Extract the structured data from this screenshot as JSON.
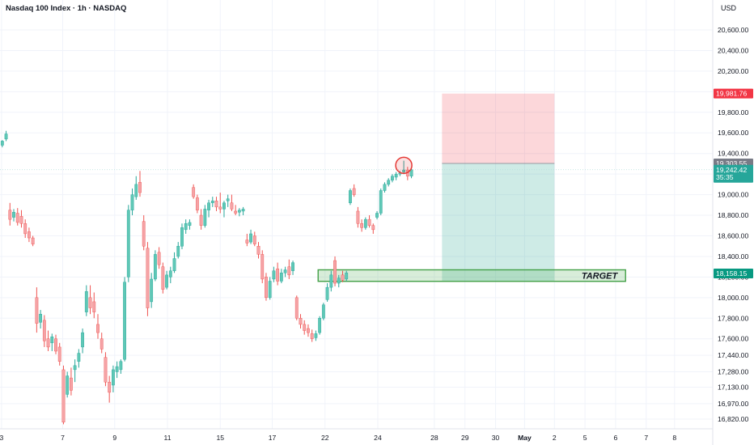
{
  "header": {
    "symbol": "Nasdaq 100 Index · 1h · NASDAQ",
    "currency": "USD"
  },
  "colors": {
    "up": "#26a69a",
    "down": "#ef5350",
    "up_body": "#5fc8b6",
    "down_body": "#f5a3a6",
    "grid": "#f0f3fa",
    "axis_text": "#131722",
    "stop_zone": "rgba(242,54,69,0.2)",
    "profit_zone": "rgba(8,153,129,0.2)",
    "target_zone": "rgba(76,175,80,0.22)",
    "target_border": "#43a047",
    "marker": "#e53935"
  },
  "chart_data": {
    "type": "candlestick",
    "title": "Nasdaq 100 Index · 1h · NASDAQ",
    "ylim": [
      16720,
      20760
    ],
    "y_ticks": [
      "16,820.00",
      "16,970.00",
      "17,130.00",
      "17,280.00",
      "17,440.00",
      "17,600.00",
      "17,800.00",
      "18,000.00",
      "18,200.00",
      "18,400.00",
      "18,600.00",
      "18,800.00",
      "19,000.00",
      "19,200.00",
      "19,400.00",
      "19,600.00",
      "19,800.00",
      "20,000.00",
      "20,200.00",
      "20,400.00",
      "20,600.00"
    ],
    "y_tick_values": [
      16820,
      16970,
      17130,
      17280,
      17440,
      17600,
      17800,
      18000,
      18200,
      18400,
      18600,
      18800,
      19000,
      19200,
      19400,
      19600,
      19800,
      20000,
      20200,
      20400,
      20600
    ],
    "x_tick_labels": [
      "3",
      "7",
      "9",
      "11",
      "15",
      "17",
      "22",
      "24",
      "28",
      "29",
      "30",
      "May",
      "2",
      "5",
      "6",
      "7",
      "8"
    ],
    "x_tick_bars": [
      2,
      82,
      150,
      219,
      288,
      356,
      425,
      494,
      568,
      608,
      648,
      686,
      725,
      765,
      805,
      845,
      882
    ],
    "bars_total": 932,
    "price_labels": {
      "stop": "19,981.76",
      "entry": "19,303.55",
      "last": "19,242.42",
      "countdown": "35:35",
      "target": "18,158.15"
    },
    "position": {
      "entry": 19303.55,
      "stop": 19981.76,
      "target": 18158.15,
      "start_bar": 578,
      "end_bar": 725
    },
    "target_zone": {
      "label": "TARGET",
      "top": 18270,
      "bottom": 18158.15,
      "start_bar": 416,
      "end_bar": 818
    },
    "marker": {
      "bar": 528,
      "price": 19285
    },
    "candles": [
      {
        "x": 3,
        "o": 19480,
        "h": 19530,
        "l": 19460,
        "c": 19520
      },
      {
        "x": 8,
        "o": 19540,
        "h": 19620,
        "l": 19520,
        "c": 19590
      },
      {
        "x": 13,
        "o": 18850,
        "h": 18920,
        "l": 18700,
        "c": 18760
      },
      {
        "x": 18,
        "o": 18780,
        "h": 18860,
        "l": 18740,
        "c": 18830
      },
      {
        "x": 23,
        "o": 18820,
        "h": 18870,
        "l": 18700,
        "c": 18730
      },
      {
        "x": 28,
        "o": 18790,
        "h": 18850,
        "l": 18680,
        "c": 18720
      },
      {
        "x": 33,
        "o": 18720,
        "h": 18760,
        "l": 18580,
        "c": 18620
      },
      {
        "x": 38,
        "o": 18640,
        "h": 18680,
        "l": 18540,
        "c": 18580
      },
      {
        "x": 43,
        "o": 18580,
        "h": 18600,
        "l": 18500,
        "c": 18520
      },
      {
        "x": 48,
        "o": 18000,
        "h": 18100,
        "l": 17660,
        "c": 17750
      },
      {
        "x": 53,
        "o": 17760,
        "h": 17880,
        "l": 17700,
        "c": 17840
      },
      {
        "x": 58,
        "o": 17780,
        "h": 17830,
        "l": 17520,
        "c": 17580
      },
      {
        "x": 63,
        "o": 17600,
        "h": 17680,
        "l": 17480,
        "c": 17520
      },
      {
        "x": 68,
        "o": 17560,
        "h": 17650,
        "l": 17480,
        "c": 17620
      },
      {
        "x": 73,
        "o": 17600,
        "h": 17640,
        "l": 17450,
        "c": 17480
      },
      {
        "x": 78,
        "o": 17520,
        "h": 17560,
        "l": 17340,
        "c": 17380
      },
      {
        "x": 83,
        "o": 17300,
        "h": 17340,
        "l": 16770,
        "c": 16790
      },
      {
        "x": 88,
        "o": 17060,
        "h": 17280,
        "l": 17030,
        "c": 17240
      },
      {
        "x": 93,
        "o": 17220,
        "h": 17320,
        "l": 17050,
        "c": 17100
      },
      {
        "x": 98,
        "o": 17300,
        "h": 17400,
        "l": 17180,
        "c": 17340
      },
      {
        "x": 103,
        "o": 17380,
        "h": 17500,
        "l": 17320,
        "c": 17460
      },
      {
        "x": 108,
        "o": 17520,
        "h": 17700,
        "l": 17460,
        "c": 17660
      },
      {
        "x": 113,
        "o": 17860,
        "h": 18120,
        "l": 17820,
        "c": 18060
      },
      {
        "x": 118,
        "o": 18000,
        "h": 18120,
        "l": 17840,
        "c": 17900
      },
      {
        "x": 123,
        "o": 17960,
        "h": 18050,
        "l": 17800,
        "c": 17860
      },
      {
        "x": 128,
        "o": 17740,
        "h": 17840,
        "l": 17600,
        "c": 17660
      },
      {
        "x": 133,
        "o": 17600,
        "h": 17660,
        "l": 17460,
        "c": 17500
      },
      {
        "x": 138,
        "o": 17420,
        "h": 17470,
        "l": 17140,
        "c": 17180
      },
      {
        "x": 143,
        "o": 17180,
        "h": 17240,
        "l": 16980,
        "c": 17080
      },
      {
        "x": 148,
        "o": 17150,
        "h": 17340,
        "l": 17080,
        "c": 17300
      },
      {
        "x": 153,
        "o": 17280,
        "h": 17380,
        "l": 17220,
        "c": 17330
      },
      {
        "x": 158,
        "o": 17300,
        "h": 17400,
        "l": 17260,
        "c": 17380
      },
      {
        "x": 163,
        "o": 17400,
        "h": 18200,
        "l": 17380,
        "c": 18150
      },
      {
        "x": 168,
        "o": 18200,
        "h": 18900,
        "l": 18150,
        "c": 18850
      },
      {
        "x": 173,
        "o": 18850,
        "h": 19060,
        "l": 18800,
        "c": 19000
      },
      {
        "x": 178,
        "o": 18980,
        "h": 19180,
        "l": 18950,
        "c": 19100
      },
      {
        "x": 183,
        "o": 19120,
        "h": 19230,
        "l": 18980,
        "c": 19020
      },
      {
        "x": 188,
        "o": 18740,
        "h": 18800,
        "l": 18460,
        "c": 18500
      },
      {
        "x": 193,
        "o": 18480,
        "h": 18540,
        "l": 17820,
        "c": 17900
      },
      {
        "x": 198,
        "o": 17960,
        "h": 18240,
        "l": 17900,
        "c": 18180
      },
      {
        "x": 203,
        "o": 18180,
        "h": 18460,
        "l": 18160,
        "c": 18420
      },
      {
        "x": 208,
        "o": 18440,
        "h": 18490,
        "l": 18280,
        "c": 18320
      },
      {
        "x": 213,
        "o": 18300,
        "h": 18340,
        "l": 18040,
        "c": 18080
      },
      {
        "x": 218,
        "o": 18100,
        "h": 18260,
        "l": 18080,
        "c": 18220
      },
      {
        "x": 223,
        "o": 18200,
        "h": 18300,
        "l": 18140,
        "c": 18260
      },
      {
        "x": 228,
        "o": 18260,
        "h": 18440,
        "l": 18240,
        "c": 18380
      },
      {
        "x": 233,
        "o": 18400,
        "h": 18540,
        "l": 18380,
        "c": 18500
      },
      {
        "x": 238,
        "o": 18500,
        "h": 18720,
        "l": 18470,
        "c": 18680
      },
      {
        "x": 243,
        "o": 18660,
        "h": 18760,
        "l": 18620,
        "c": 18720
      },
      {
        "x": 248,
        "o": 18700,
        "h": 18760,
        "l": 18660,
        "c": 18730
      },
      {
        "x": 253,
        "o": 19070,
        "h": 19100,
        "l": 18960,
        "c": 18980
      },
      {
        "x": 258,
        "o": 18970,
        "h": 19000,
        "l": 18820,
        "c": 18850
      },
      {
        "x": 263,
        "o": 18800,
        "h": 18860,
        "l": 18660,
        "c": 18700
      },
      {
        "x": 268,
        "o": 18700,
        "h": 18900,
        "l": 18680,
        "c": 18860
      },
      {
        "x": 273,
        "o": 18850,
        "h": 18950,
        "l": 18780,
        "c": 18920
      },
      {
        "x": 278,
        "o": 18920,
        "h": 18980,
        "l": 18880,
        "c": 18940
      },
      {
        "x": 283,
        "o": 18940,
        "h": 18980,
        "l": 18840,
        "c": 18880
      },
      {
        "x": 288,
        "o": 18880,
        "h": 19020,
        "l": 18820,
        "c": 18860
      },
      {
        "x": 293,
        "o": 18860,
        "h": 18940,
        "l": 18780,
        "c": 18920
      },
      {
        "x": 298,
        "o": 18940,
        "h": 19000,
        "l": 18880,
        "c": 18960
      },
      {
        "x": 303,
        "o": 18920,
        "h": 19000,
        "l": 18840,
        "c": 18860
      },
      {
        "x": 308,
        "o": 18840,
        "h": 18900,
        "l": 18800,
        "c": 18820
      },
      {
        "x": 313,
        "o": 18830,
        "h": 18870,
        "l": 18790,
        "c": 18850
      },
      {
        "x": 318,
        "o": 18840,
        "h": 18880,
        "l": 18800,
        "c": 18860
      },
      {
        "x": 323,
        "o": 18560,
        "h": 18620,
        "l": 18500,
        "c": 18530
      },
      {
        "x": 328,
        "o": 18540,
        "h": 18660,
        "l": 18520,
        "c": 18620
      },
      {
        "x": 333,
        "o": 18600,
        "h": 18640,
        "l": 18500,
        "c": 18520
      },
      {
        "x": 338,
        "o": 18500,
        "h": 18540,
        "l": 18380,
        "c": 18420
      },
      {
        "x": 343,
        "o": 18420,
        "h": 18460,
        "l": 18140,
        "c": 18180
      },
      {
        "x": 348,
        "o": 18200,
        "h": 18240,
        "l": 17970,
        "c": 18000
      },
      {
        "x": 353,
        "o": 18000,
        "h": 18200,
        "l": 17980,
        "c": 18160
      },
      {
        "x": 358,
        "o": 18180,
        "h": 18300,
        "l": 18150,
        "c": 18260
      },
      {
        "x": 363,
        "o": 18280,
        "h": 18340,
        "l": 18120,
        "c": 18160
      },
      {
        "x": 368,
        "o": 18160,
        "h": 18280,
        "l": 18140,
        "c": 18240
      },
      {
        "x": 373,
        "o": 18240,
        "h": 18300,
        "l": 18200,
        "c": 18270
      },
      {
        "x": 378,
        "o": 18300,
        "h": 18370,
        "l": 18180,
        "c": 18220
      },
      {
        "x": 383,
        "o": 18260,
        "h": 18360,
        "l": 18220,
        "c": 18340
      },
      {
        "x": 388,
        "o": 18000,
        "h": 18020,
        "l": 17780,
        "c": 17800
      },
      {
        "x": 393,
        "o": 17800,
        "h": 17840,
        "l": 17700,
        "c": 17740
      },
      {
        "x": 398,
        "o": 17740,
        "h": 17780,
        "l": 17640,
        "c": 17680
      },
      {
        "x": 403,
        "o": 17700,
        "h": 17740,
        "l": 17620,
        "c": 17660
      },
      {
        "x": 408,
        "o": 17650,
        "h": 17690,
        "l": 17570,
        "c": 17600
      },
      {
        "x": 413,
        "o": 17610,
        "h": 17680,
        "l": 17580,
        "c": 17650
      },
      {
        "x": 418,
        "o": 17660,
        "h": 17820,
        "l": 17640,
        "c": 17800
      },
      {
        "x": 423,
        "o": 17800,
        "h": 17950,
        "l": 17780,
        "c": 17930
      },
      {
        "x": 428,
        "o": 17980,
        "h": 18140,
        "l": 17960,
        "c": 18100
      },
      {
        "x": 433,
        "o": 18100,
        "h": 18260,
        "l": 18060,
        "c": 18220
      },
      {
        "x": 438,
        "o": 18360,
        "h": 18400,
        "l": 18110,
        "c": 18140
      },
      {
        "x": 443,
        "o": 18140,
        "h": 18220,
        "l": 18100,
        "c": 18190
      },
      {
        "x": 448,
        "o": 18220,
        "h": 18260,
        "l": 18150,
        "c": 18170
      },
      {
        "x": 453,
        "o": 18180,
        "h": 18260,
        "l": 18160,
        "c": 18240
      },
      {
        "x": 458,
        "o": 18920,
        "h": 19060,
        "l": 18900,
        "c": 19040
      },
      {
        "x": 463,
        "o": 19060,
        "h": 19100,
        "l": 18980,
        "c": 19000
      },
      {
        "x": 468,
        "o": 18840,
        "h": 18880,
        "l": 18680,
        "c": 18720
      },
      {
        "x": 473,
        "o": 18720,
        "h": 18760,
        "l": 18640,
        "c": 18680
      },
      {
        "x": 478,
        "o": 18680,
        "h": 18780,
        "l": 18660,
        "c": 18760
      },
      {
        "x": 483,
        "o": 18760,
        "h": 18800,
        "l": 18680,
        "c": 18700
      },
      {
        "x": 488,
        "o": 18700,
        "h": 18720,
        "l": 18620,
        "c": 18660
      },
      {
        "x": 493,
        "o": 18780,
        "h": 18840,
        "l": 18760,
        "c": 18820
      },
      {
        "x": 498,
        "o": 18820,
        "h": 19060,
        "l": 18800,
        "c": 19040
      },
      {
        "x": 503,
        "o": 19040,
        "h": 19120,
        "l": 19020,
        "c": 19100
      },
      {
        "x": 508,
        "o": 19100,
        "h": 19160,
        "l": 19080,
        "c": 19140
      },
      {
        "x": 513,
        "o": 19140,
        "h": 19200,
        "l": 19120,
        "c": 19180
      },
      {
        "x": 518,
        "o": 19170,
        "h": 19220,
        "l": 19140,
        "c": 19200
      },
      {
        "x": 523,
        "o": 19200,
        "h": 19230,
        "l": 19180,
        "c": 19210
      },
      {
        "x": 528,
        "o": 19220,
        "h": 19330,
        "l": 19200,
        "c": 19240
      },
      {
        "x": 533,
        "o": 19240,
        "h": 19270,
        "l": 19140,
        "c": 19180
      },
      {
        "x": 538,
        "o": 19180,
        "h": 19260,
        "l": 19160,
        "c": 19242
      }
    ]
  }
}
